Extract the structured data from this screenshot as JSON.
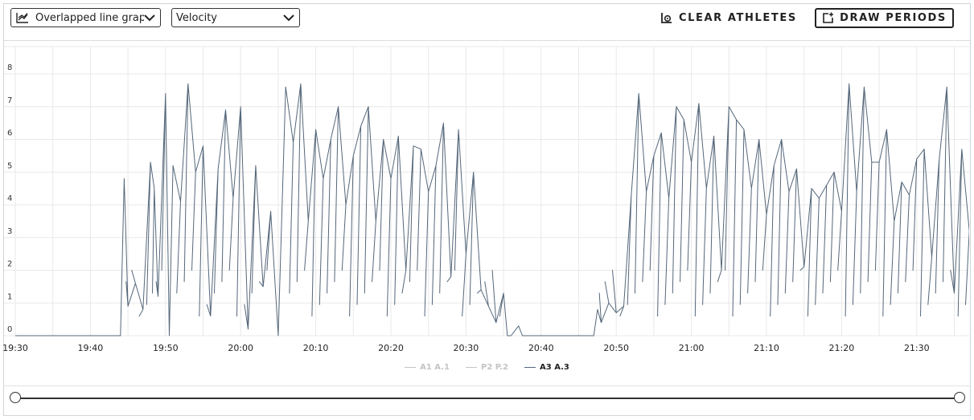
{
  "toolbar": {
    "graph_type": {
      "value": "Overlapped line graph",
      "icon": "line-chart-icon"
    },
    "metric": {
      "value": "Velocity"
    },
    "clear_button": {
      "label": "CLEAR ATHLETES",
      "icon": "clear-athletes-icon"
    },
    "draw_button": {
      "label": "DRAW PERIODS",
      "icon": "add-period-icon"
    }
  },
  "colors": {
    "series_line": "#55677a",
    "grid": "#e9e9e9",
    "legend_inactive": "#c4c4c4",
    "legend_active": "#222222"
  },
  "chart_data": {
    "type": "line",
    "title": "",
    "xlabel": "",
    "ylabel": "",
    "ylim": [
      0,
      9
    ],
    "yticks": [
      0,
      1,
      2,
      3,
      4,
      5,
      6,
      7,
      8
    ],
    "x_domain": [
      "19:30",
      "21:38"
    ],
    "xticks": [
      "19:30",
      "19:40",
      "19:50",
      "20:00",
      "20:10",
      "20:20",
      "20:30",
      "20:40",
      "20:50",
      "21:00",
      "21:10",
      "21:20",
      "21:30"
    ],
    "grid": true,
    "legend_position": "bottom-center",
    "legend": [
      {
        "name": "A1 A.1",
        "active": false
      },
      {
        "name": "P2 P.2",
        "active": false
      },
      {
        "name": "A3 A.3",
        "active": true
      }
    ],
    "series": [
      {
        "name": "A3 A.3",
        "points": [
          [
            "19:30",
            0
          ],
          [
            "19:44",
            0
          ],
          [
            "19:44.5",
            4.8
          ],
          [
            "19:45",
            0.9
          ],
          [
            "19:46",
            1.6
          ],
          [
            "19:47",
            0.8
          ],
          [
            "19:48",
            5.3
          ],
          [
            "19:48.5",
            4.5
          ],
          [
            "19:49",
            1.2
          ],
          [
            "19:50",
            7.4
          ],
          [
            "19:50.5",
            0
          ],
          [
            "19:51",
            5.2
          ],
          [
            "19:52",
            4.1
          ],
          [
            "19:53",
            7.7
          ],
          [
            "19:54",
            5.0
          ],
          [
            "19:55",
            5.8
          ],
          [
            "19:56",
            0.6
          ],
          [
            "19:57",
            5.1
          ],
          [
            "19:58",
            6.9
          ],
          [
            "19:59",
            4.2
          ],
          [
            "20:00",
            7.0
          ],
          [
            "20:01",
            0.2
          ],
          [
            "20:02",
            5.2
          ],
          [
            "20:03",
            1.5
          ],
          [
            "20:04",
            3.8
          ],
          [
            "20:05",
            0
          ],
          [
            "20:06",
            7.6
          ],
          [
            "20:07",
            5.9
          ],
          [
            "20:08",
            7.7
          ],
          [
            "20:09",
            3.5
          ],
          [
            "20:10",
            6.3
          ],
          [
            "20:11",
            4.8
          ],
          [
            "20:12",
            6.0
          ],
          [
            "20:13",
            7.0
          ],
          [
            "20:14",
            4.0
          ],
          [
            "20:15",
            5.5
          ],
          [
            "20:16",
            6.4
          ],
          [
            "20:17",
            7.0
          ],
          [
            "20:18",
            3.5
          ],
          [
            "20:19",
            6.0
          ],
          [
            "20:20",
            4.8
          ],
          [
            "20:21",
            6.1
          ],
          [
            "20:22",
            2.0
          ],
          [
            "20:23",
            5.8
          ],
          [
            "20:24",
            5.7
          ],
          [
            "20:25",
            4.4
          ],
          [
            "20:26",
            5.2
          ],
          [
            "20:27",
            6.5
          ],
          [
            "20:28",
            1.8
          ],
          [
            "20:29",
            6.3
          ],
          [
            "20:30",
            2.5
          ],
          [
            "20:31",
            5.0
          ],
          [
            "20:32",
            1.4
          ],
          [
            "20:33",
            0.9
          ],
          [
            "20:34",
            0.4
          ],
          [
            "20:35",
            1.3
          ],
          [
            "20:35.5",
            0
          ],
          [
            "20:36",
            0
          ],
          [
            "20:37",
            0.3
          ],
          [
            "20:37.5",
            0
          ],
          [
            "20:47",
            0
          ],
          [
            "20:47.5",
            0.8
          ],
          [
            "20:48",
            0.4
          ],
          [
            "20:49",
            1.0
          ],
          [
            "20:50",
            0.7
          ],
          [
            "20:51",
            0.9
          ],
          [
            "20:52",
            4.3
          ],
          [
            "20:53",
            7.4
          ],
          [
            "20:54",
            4.4
          ],
          [
            "20:55",
            5.5
          ],
          [
            "20:56",
            6.2
          ],
          [
            "20:57",
            4.2
          ],
          [
            "20:58",
            7.0
          ],
          [
            "20:59",
            6.6
          ],
          [
            "21:00",
            5.3
          ],
          [
            "21:01",
            7.1
          ],
          [
            "21:02",
            4.5
          ],
          [
            "21:03",
            6.1
          ],
          [
            "21:04",
            2.0
          ],
          [
            "21:05",
            7.0
          ],
          [
            "21:06",
            6.6
          ],
          [
            "21:07",
            6.3
          ],
          [
            "21:08",
            4.5
          ],
          [
            "21:09",
            6.0
          ],
          [
            "21:10",
            3.7
          ],
          [
            "21:11",
            5.2
          ],
          [
            "21:12",
            6.0
          ],
          [
            "21:13",
            4.4
          ],
          [
            "21:14",
            5.1
          ],
          [
            "21:15",
            2.1
          ],
          [
            "21:16",
            4.5
          ],
          [
            "21:17",
            4.2
          ],
          [
            "21:18",
            4.6
          ],
          [
            "21:19",
            5.0
          ],
          [
            "21:20",
            3.8
          ],
          [
            "21:21",
            7.7
          ],
          [
            "21:22",
            4.4
          ],
          [
            "21:23",
            7.6
          ],
          [
            "21:24",
            5.3
          ],
          [
            "21:25",
            5.3
          ],
          [
            "21:26",
            6.3
          ],
          [
            "21:27",
            3.5
          ],
          [
            "21:28",
            4.7
          ],
          [
            "21:29",
            4.3
          ],
          [
            "21:30",
            5.4
          ],
          [
            "21:31",
            5.7
          ],
          [
            "21:32",
            2.4
          ],
          [
            "21:33",
            5.4
          ],
          [
            "21:34",
            7.6
          ],
          [
            "21:35",
            1.3
          ],
          [
            "21:36",
            5.7
          ],
          [
            "21:37",
            3.2
          ],
          [
            "21:38",
            1.5
          ]
        ]
      }
    ]
  }
}
